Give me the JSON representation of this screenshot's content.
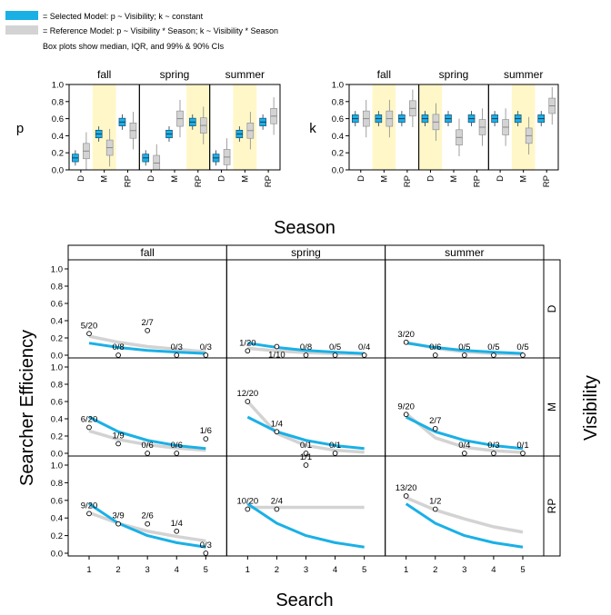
{
  "legend": {
    "items": [
      {
        "label": "= Selected Model: p ~ Visibility; k ~ constant",
        "color": "#1ab0e6"
      },
      {
        "label": "= Reference Model: p ~ Visibility * Season; k ~ Visibility * Season",
        "color": "#d3d3d3"
      }
    ],
    "note": "Box plots show median, IQR, and 99% &  90% CIs"
  },
  "colors": {
    "selected": "#1ab0e6",
    "reference": "#d3d3d3",
    "highlight": "#fff7c8",
    "frame": "#000000"
  },
  "chart_data": [
    {
      "type": "box",
      "ylabel": "p",
      "panels": [
        "fall",
        "spring",
        "summer"
      ],
      "categories": [
        "D",
        "M",
        "RP"
      ],
      "highlighted": {
        "fall": "M",
        "spring": "RP",
        "summer": "M"
      },
      "ylim": [
        0,
        1
      ],
      "yticks": [
        "0.0",
        "0.2",
        "0.4",
        "0.6",
        "0.8",
        "1.0"
      ],
      "series": [
        {
          "name": "Selected Model",
          "medians": {
            "fall": [
              0.14,
              0.42,
              0.56
            ],
            "spring": [
              0.14,
              0.42,
              0.56
            ],
            "summer": [
              0.14,
              0.42,
              0.56
            ]
          }
        },
        {
          "name": "Reference Model",
          "medians": {
            "fall": [
              0.22,
              0.26,
              0.46
            ],
            "spring": [
              0.08,
              0.6,
              0.52
            ],
            "summer": [
              0.15,
              0.46,
              0.63
            ]
          }
        }
      ]
    },
    {
      "type": "box",
      "ylabel": "k",
      "panels": [
        "fall",
        "spring",
        "summer"
      ],
      "categories": [
        "D",
        "M",
        "RP"
      ],
      "highlighted": {
        "fall": "M",
        "spring": "D",
        "summer": "M"
      },
      "ylim": [
        0,
        1
      ],
      "yticks": [
        "0.0",
        "0.2",
        "0.4",
        "0.6",
        "0.8",
        "1.0"
      ],
      "series": [
        {
          "name": "Selected Model",
          "medians": {
            "fall": [
              0.6,
              0.6,
              0.6
            ],
            "spring": [
              0.6,
              0.6,
              0.6
            ],
            "summer": [
              0.6,
              0.6,
              0.6
            ]
          }
        },
        {
          "name": "Reference Model",
          "medians": {
            "fall": [
              0.6,
              0.6,
              0.72
            ],
            "spring": [
              0.56,
              0.38,
              0.5
            ],
            "summer": [
              0.5,
              0.4,
              0.75
            ]
          }
        }
      ]
    },
    {
      "type": "line",
      "title": "Season",
      "xlabel": "Search",
      "ylabel": "Searcher Efficiency",
      "row_label": "Visibility",
      "columns": [
        "fall",
        "spring",
        "summer"
      ],
      "rows": [
        "D",
        "M",
        "RP"
      ],
      "x": [
        1,
        2,
        3,
        4,
        5
      ],
      "ylim": [
        0,
        1
      ],
      "yticks": [
        "0.0",
        "0.2",
        "0.4",
        "0.6",
        "0.8",
        "1.0"
      ],
      "cells": {
        "D": {
          "fall": {
            "points": [
              {
                "x": 1,
                "y": 0.25,
                "label": "5/20"
              },
              {
                "x": 2,
                "y": 0.0,
                "label": "0/8"
              },
              {
                "x": 3,
                "y": 0.286,
                "label": "2/7"
              },
              {
                "x": 4,
                "y": 0.0,
                "label": "0/3"
              },
              {
                "x": 5,
                "y": 0.0,
                "label": "0/3"
              }
            ],
            "selected": [
              0.14,
              0.09,
              0.055,
              0.035,
              0.02
            ],
            "reference": [
              0.22,
              0.15,
              0.1,
              0.07,
              0.04
            ]
          },
          "spring": {
            "points": [
              {
                "x": 1,
                "y": 0.05,
                "label": "1/20"
              },
              {
                "x": 2,
                "y": 0.1,
                "label": "1/10"
              },
              {
                "x": 3,
                "y": 0.0,
                "label": "0/8"
              },
              {
                "x": 4,
                "y": 0.0,
                "label": "0/5"
              },
              {
                "x": 5,
                "y": 0.0,
                "label": "0/4"
              }
            ],
            "selected": [
              0.14,
              0.09,
              0.055,
              0.035,
              0.02
            ],
            "reference": [
              0.08,
              0.05,
              0.03,
              0.02,
              0.01
            ]
          },
          "summer": {
            "points": [
              {
                "x": 1,
                "y": 0.15,
                "label": "3/20"
              },
              {
                "x": 2,
                "y": 0.0,
                "label": "0/6"
              },
              {
                "x": 3,
                "y": 0.0,
                "label": "0/5"
              },
              {
                "x": 4,
                "y": 0.0,
                "label": "0/5"
              },
              {
                "x": 5,
                "y": 0.0,
                "label": "0/5"
              }
            ],
            "selected": [
              0.14,
              0.09,
              0.055,
              0.035,
              0.02
            ],
            "reference": [
              0.15,
              0.08,
              0.04,
              0.02,
              0.01
            ]
          }
        },
        "M": {
          "fall": {
            "points": [
              {
                "x": 1,
                "y": 0.3,
                "label": "6/20"
              },
              {
                "x": 2,
                "y": 0.111,
                "label": "1/9"
              },
              {
                "x": 3,
                "y": 0.0,
                "label": "0/6"
              },
              {
                "x": 4,
                "y": 0.0,
                "label": "0/6"
              },
              {
                "x": 5,
                "y": 0.167,
                "label": "1/6"
              }
            ],
            "selected": [
              0.42,
              0.25,
              0.15,
              0.09,
              0.055
            ],
            "reference": [
              0.26,
              0.16,
              0.1,
              0.06,
              0.035
            ]
          },
          "spring": {
            "points": [
              {
                "x": 1,
                "y": 0.6,
                "label": "12/20"
              },
              {
                "x": 2,
                "y": 0.25,
                "label": "1/4"
              },
              {
                "x": 3,
                "y": 0.0,
                "label": "0/1"
              },
              {
                "x": 4,
                "y": 0.0,
                "label": "0/1"
              }
            ],
            "selected": [
              0.42,
              0.25,
              0.15,
              0.09,
              0.055
            ],
            "reference": [
              0.6,
              0.23,
              0.09,
              0.035,
              0.013
            ]
          },
          "summer": {
            "points": [
              {
                "x": 1,
                "y": 0.45,
                "label": "9/20"
              },
              {
                "x": 2,
                "y": 0.286,
                "label": "2/7"
              },
              {
                "x": 3,
                "y": 0.0,
                "label": "0/4"
              },
              {
                "x": 4,
                "y": 0.0,
                "label": "0/3"
              },
              {
                "x": 5,
                "y": 0.0,
                "label": "0/1"
              }
            ],
            "selected": [
              0.42,
              0.25,
              0.15,
              0.09,
              0.055
            ],
            "reference": [
              0.46,
              0.18,
              0.07,
              0.03,
              0.01
            ]
          }
        },
        "RP": {
          "fall": {
            "points": [
              {
                "x": 1,
                "y": 0.45,
                "label": "9/20"
              },
              {
                "x": 2,
                "y": 0.333,
                "label": "3/9"
              },
              {
                "x": 3,
                "y": 0.333,
                "label": "2/6"
              },
              {
                "x": 4,
                "y": 0.25,
                "label": "1/4"
              },
              {
                "x": 5,
                "y": 0.0,
                "label": "0/3"
              }
            ],
            "selected": [
              0.56,
              0.34,
              0.2,
              0.12,
              0.07
            ],
            "reference": [
              0.46,
              0.34,
              0.25,
              0.19,
              0.14
            ]
          },
          "spring": {
            "points": [
              {
                "x": 1,
                "y": 0.5,
                "label": "10/20"
              },
              {
                "x": 2,
                "y": 0.5,
                "label": "2/4"
              },
              {
                "x": 3,
                "y": 1.0,
                "label": "1/1"
              }
            ],
            "selected": [
              0.56,
              0.34,
              0.2,
              0.12,
              0.07
            ],
            "reference": [
              0.52,
              0.52,
              0.52,
              0.52,
              0.52
            ]
          },
          "summer": {
            "points": [
              {
                "x": 1,
                "y": 0.65,
                "label": "13/20"
              },
              {
                "x": 2,
                "y": 0.5,
                "label": "1/2"
              }
            ],
            "selected": [
              0.56,
              0.34,
              0.2,
              0.12,
              0.07
            ],
            "reference": [
              0.63,
              0.49,
              0.39,
              0.3,
              0.24
            ]
          }
        }
      }
    }
  ]
}
